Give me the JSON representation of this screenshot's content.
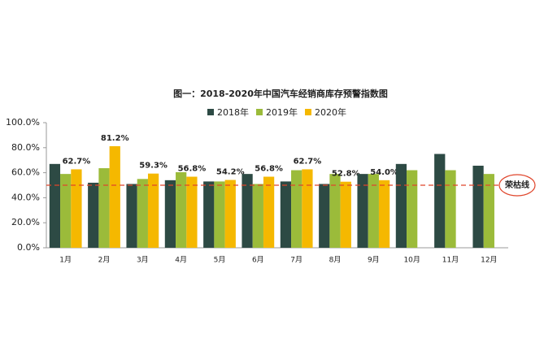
{
  "chart_data": {
    "type": "bar",
    "title": "图一：2018-2020年中国汽车经销商库存预警指数图",
    "categories": [
      "1月",
      "2月",
      "3月",
      "4月",
      "5月",
      "6月",
      "7月",
      "8月",
      "9月",
      "10月",
      "11月",
      "12月"
    ],
    "series": [
      {
        "name": "2018年",
        "color": "#2d4a44",
        "values": [
          67,
          52,
          51,
          54,
          53,
          59,
          53,
          51,
          59,
          67,
          75,
          65.6
        ]
      },
      {
        "name": "2019年",
        "color": "#9bbb3a",
        "values": [
          59,
          63.6,
          55,
          60.4,
          53,
          51,
          62,
          59,
          59,
          62,
          62,
          59
        ]
      },
      {
        "name": "2020年",
        "color": "#f5b800",
        "values": [
          62.7,
          81.2,
          59.3,
          56.8,
          54.2,
          56.8,
          62.7,
          52.8,
          54.0,
          null,
          null,
          null
        ],
        "value_labels": [
          "62.7%",
          "81.2%",
          "59.3%",
          "56.8%",
          "54.2%",
          "56.8%",
          "62.7%",
          "52.8%",
          "54.0%",
          null,
          null,
          null
        ]
      }
    ],
    "ylim": [
      0,
      100
    ],
    "yticks": [
      {
        "value": 0,
        "label": "0.0%"
      },
      {
        "value": 20,
        "label": "20.0%"
      },
      {
        "value": 40,
        "label": "40.0%"
      },
      {
        "value": 60,
        "label": "60.0%"
      },
      {
        "value": 80,
        "label": "80.0%"
      },
      {
        "value": 100,
        "label": "100.0%"
      }
    ],
    "reference_line": {
      "value": 50,
      "label": "荣枯线",
      "color": "#e0452b"
    },
    "grid": false,
    "legend": "top"
  }
}
